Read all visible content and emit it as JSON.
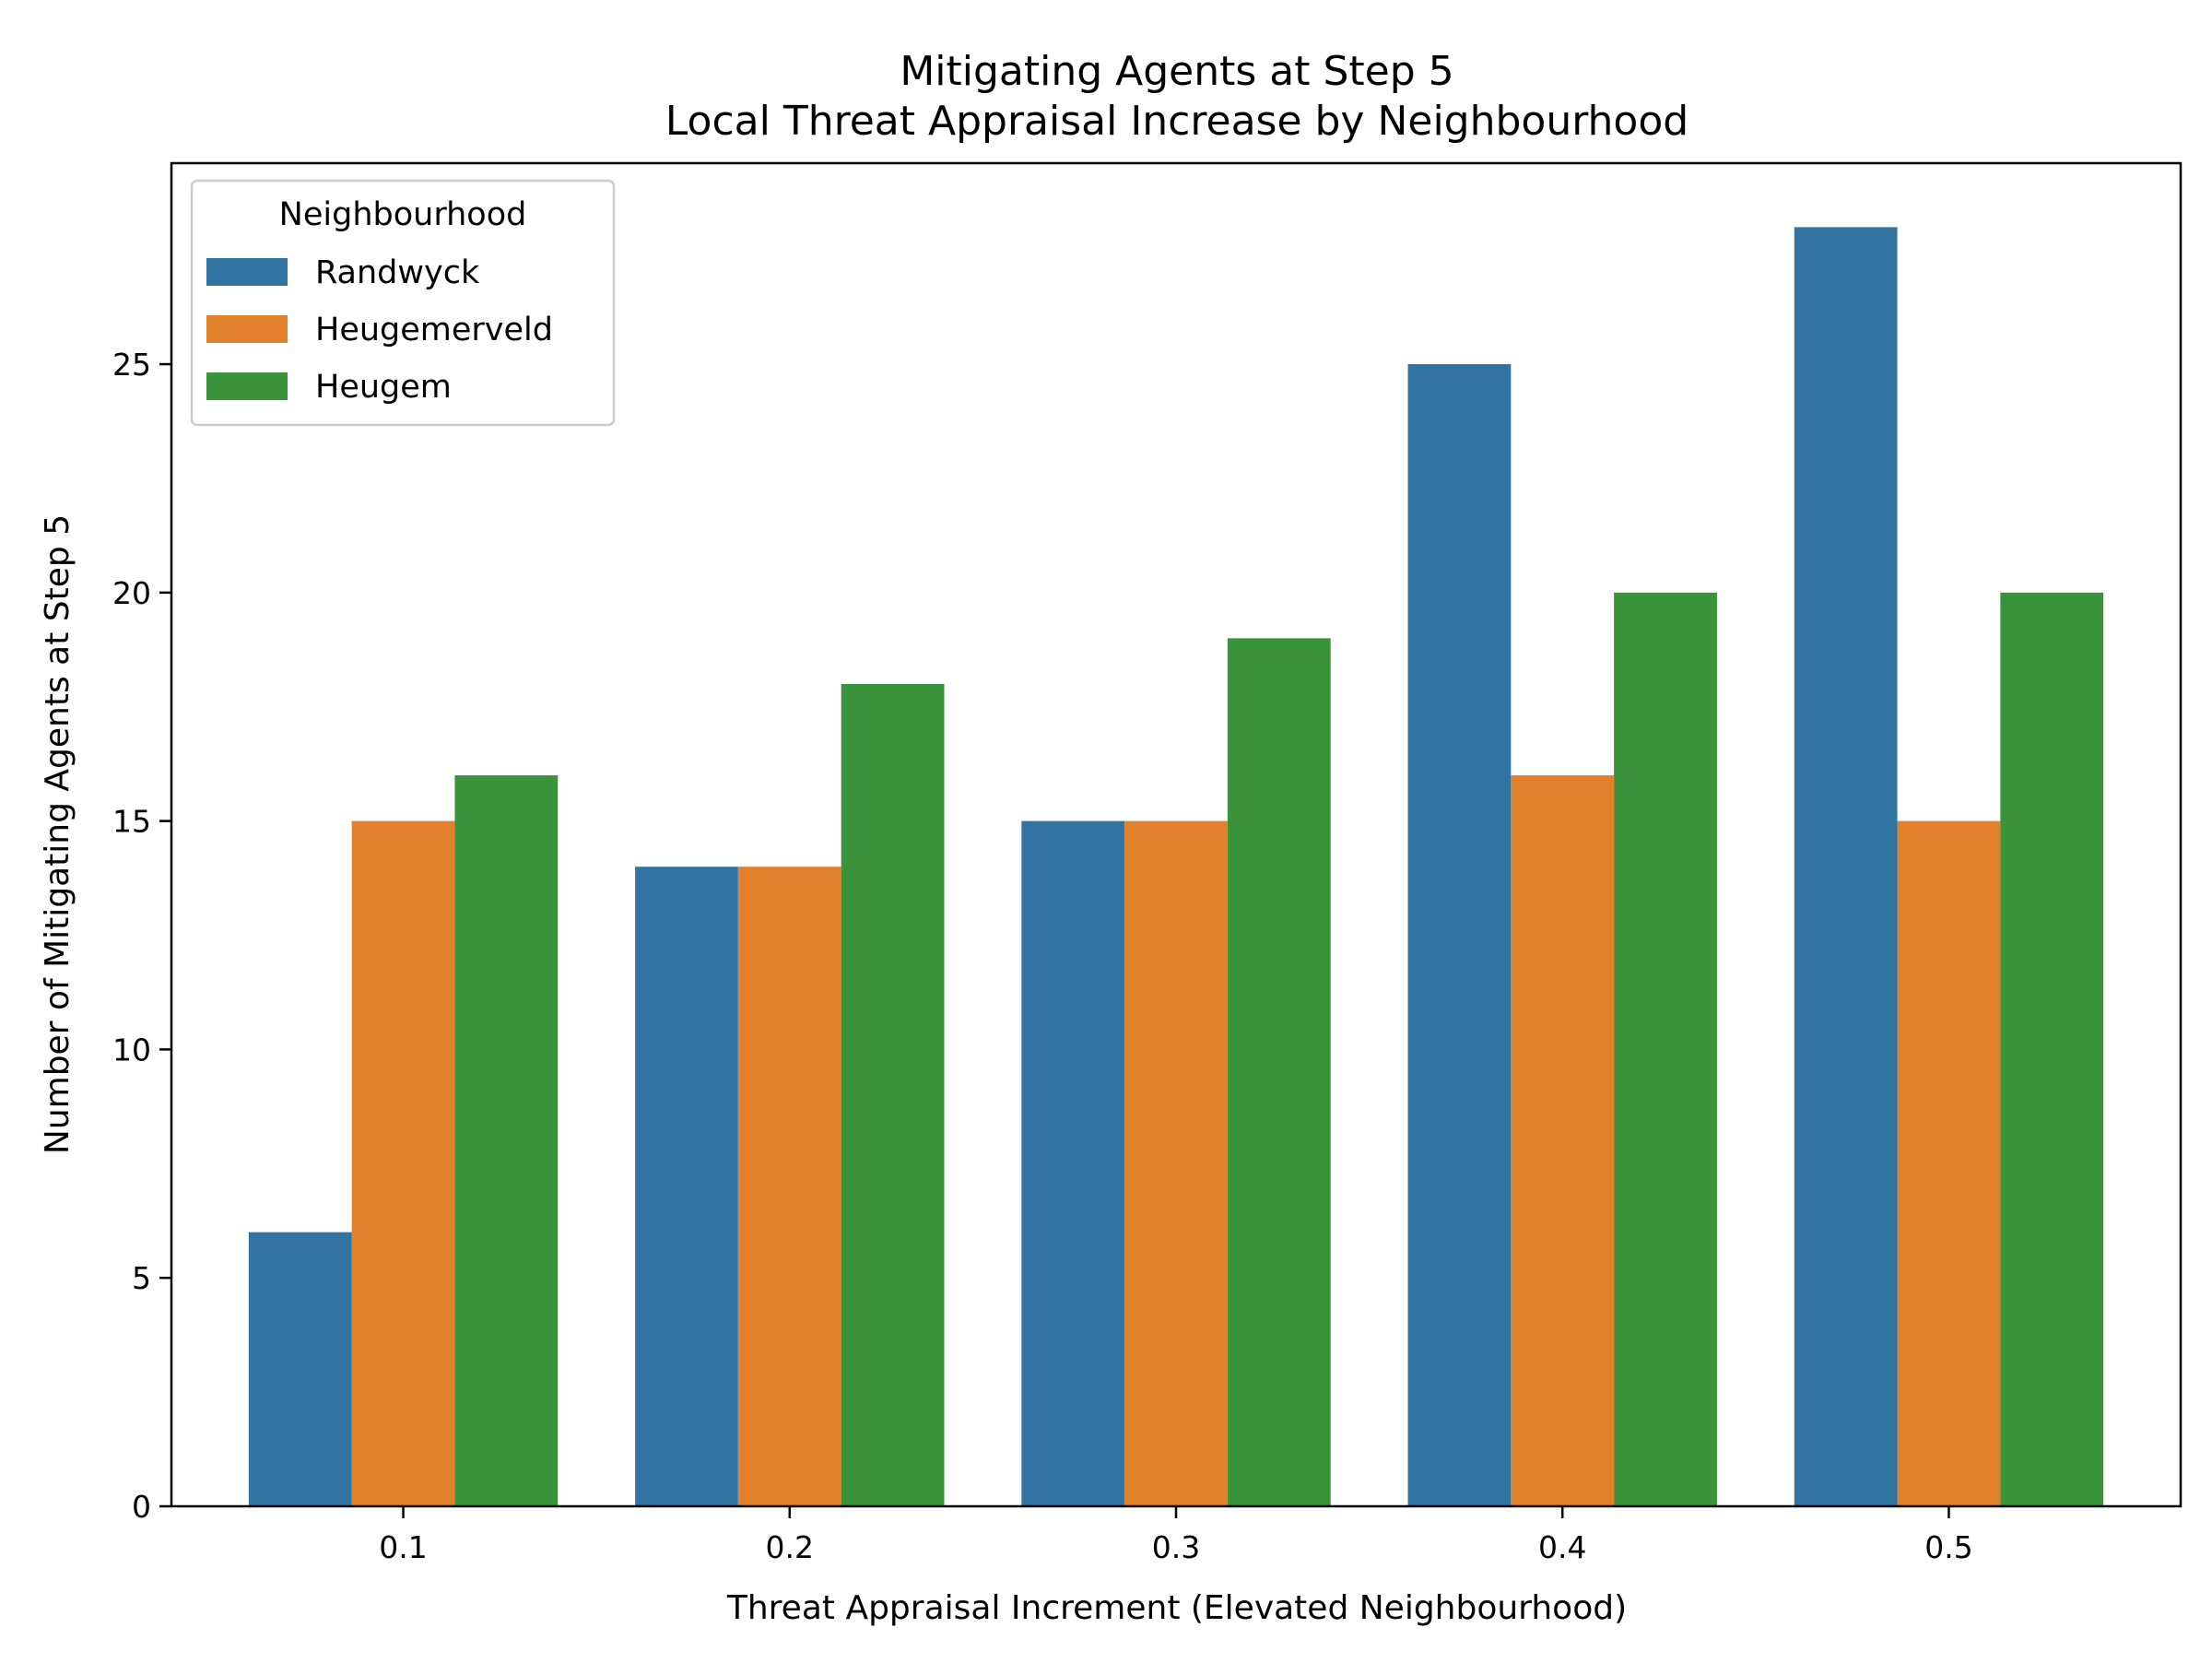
{
  "chart_data": {
    "type": "bar",
    "title": "Mitigating Agents at Step 5",
    "subtitle": "Local Threat Appraisal Increase by Neighbourhood",
    "xlabel": "Threat Appraisal Increment (Elevated Neighbourhood)",
    "ylabel": "Number of Mitigating Agents at Step 5",
    "categories": [
      "0.1",
      "0.2",
      "0.3",
      "0.4",
      "0.5"
    ],
    "series": [
      {
        "name": "Randwyck",
        "values": [
          6,
          14,
          15,
          25,
          28
        ],
        "color": "#3274a1"
      },
      {
        "name": "Heugemerveld",
        "values": [
          15,
          14,
          15,
          16,
          15
        ],
        "color": "#e1812c"
      },
      {
        "name": "Heugem",
        "values": [
          16,
          18,
          19,
          20,
          20
        ],
        "color": "#3a923a"
      }
    ],
    "ylim": [
      0,
      29.4
    ],
    "yticks": [
      0,
      5,
      10,
      15,
      20,
      25
    ],
    "grid": false,
    "legend": {
      "title": "Neighbourhood",
      "placement": "top-left"
    }
  }
}
